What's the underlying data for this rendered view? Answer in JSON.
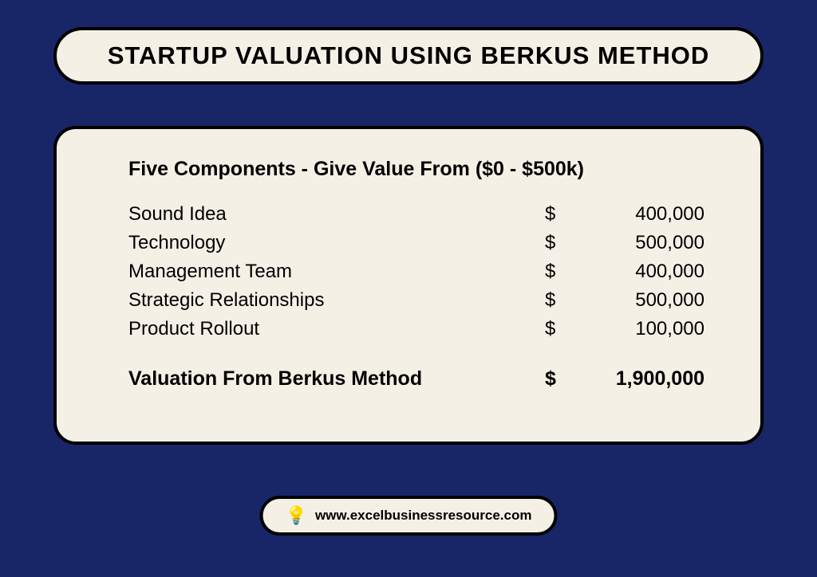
{
  "colors": {
    "background": "#182668",
    "card_bg": "#f5f0e6",
    "border": "#000000",
    "text": "#000000"
  },
  "title": "STARTUP VALUATION USING BERKUS METHOD",
  "card": {
    "subheading": "Five Components - Give Value From ($0 - $500k)",
    "rows": [
      {
        "label": "Sound Idea",
        "currency": "$",
        "value": "400,000"
      },
      {
        "label": "Technology",
        "currency": "$",
        "value": "500,000"
      },
      {
        "label": "Management Team",
        "currency": "$",
        "value": "400,000"
      },
      {
        "label": "Strategic Relationships",
        "currency": "$",
        "value": "500,000"
      },
      {
        "label": "Product Rollout",
        "currency": "$",
        "value": "100,000"
      }
    ],
    "total": {
      "label": "Valuation From Berkus Method",
      "currency": "$",
      "value": "1,900,000"
    }
  },
  "footer": {
    "icon": "💡",
    "url": "www.excelbusinessresource.com"
  }
}
